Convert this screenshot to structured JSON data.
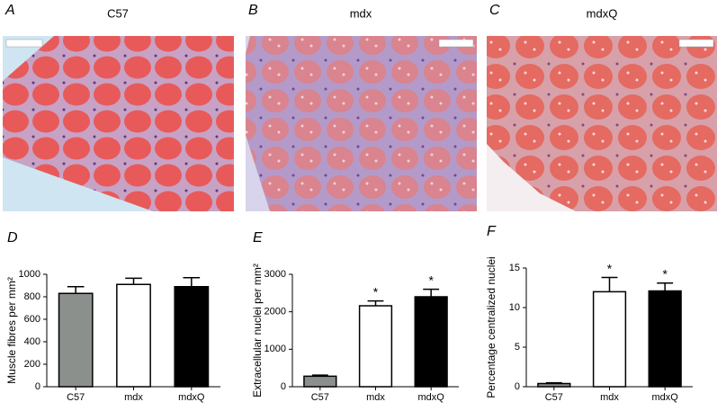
{
  "images": [
    {
      "label": "A",
      "title": "C57"
    },
    {
      "label": "B",
      "title": "mdx"
    },
    {
      "label": "C",
      "title": "mdxQ"
    }
  ],
  "chart_data": [
    {
      "type": "bar",
      "panel": "D",
      "ylabel": "Muscle fibres per mm²",
      "categories": [
        "C57",
        "mdx",
        "mdxQ"
      ],
      "values": [
        830,
        910,
        890
      ],
      "errors": [
        60,
        55,
        80
      ],
      "colors": [
        "#8b908c",
        "#ffffff",
        "#000000"
      ],
      "significance": [
        null,
        null,
        null
      ],
      "ylim": [
        0,
        1000
      ],
      "yticks": [
        0,
        200,
        400,
        600,
        800,
        1000
      ]
    },
    {
      "type": "bar",
      "panel": "E",
      "ylabel": "Extracellular nuclei per mm²",
      "categories": [
        "C57",
        "mdx",
        "mdxQ"
      ],
      "values": [
        280,
        2160,
        2400
      ],
      "errors": [
        30,
        130,
        200
      ],
      "colors": [
        "#8b908c",
        "#ffffff",
        "#000000"
      ],
      "significance": [
        null,
        "*",
        "*"
      ],
      "ylim": [
        0,
        3000
      ],
      "yticks": [
        0,
        1000,
        2000,
        3000
      ]
    },
    {
      "type": "bar",
      "panel": "F",
      "ylabel": "Percentage centralized nuclei",
      "categories": [
        "C57",
        "mdx",
        "mdxQ"
      ],
      "values": [
        0.4,
        12.0,
        12.1
      ],
      "errors": [
        0.1,
        1.8,
        1.0
      ],
      "colors": [
        "#8b908c",
        "#ffffff",
        "#000000"
      ],
      "significance": [
        null,
        "*",
        "*"
      ],
      "ylim": [
        0,
        15
      ],
      "yticks": [
        0,
        5,
        10,
        15
      ]
    }
  ]
}
